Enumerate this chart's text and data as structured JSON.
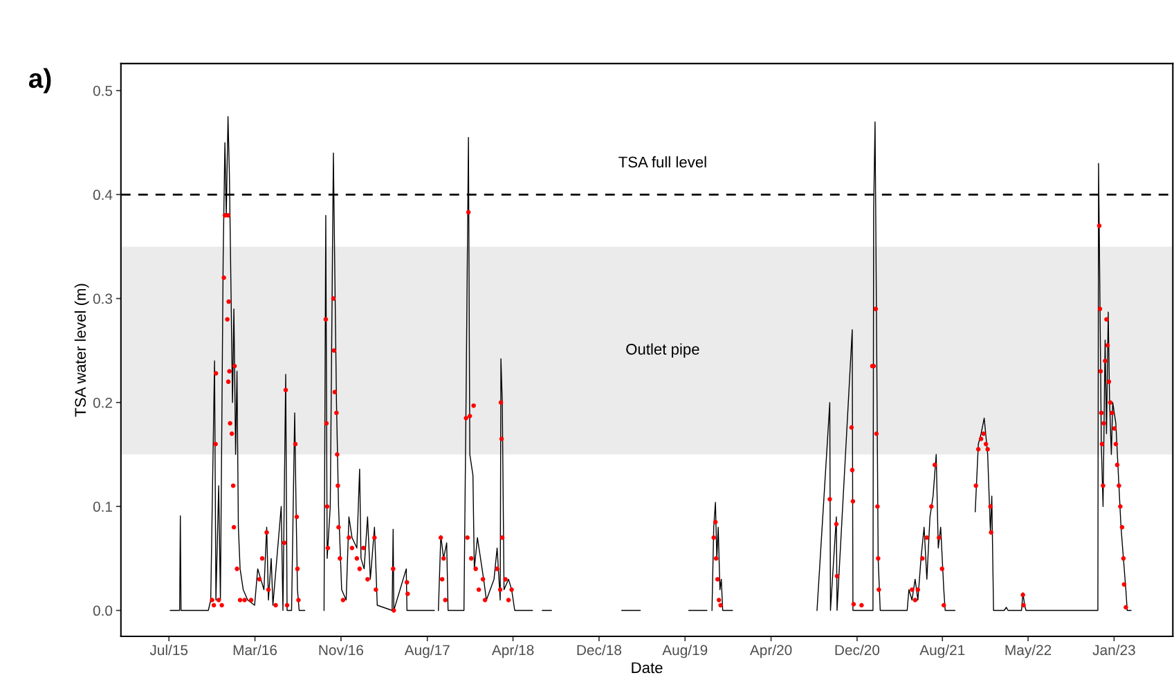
{
  "chart_data": {
    "type": "line",
    "xlabel": "Date",
    "ylabel": "TSA water level (m)",
    "annotations": [
      "a)"
    ],
    "xlim": [
      "2015-02-26",
      "2023-06-29"
    ],
    "ylim": [
      -0.025,
      0.526
    ],
    "xticks": [
      {
        "value": "2015-07-15",
        "label": "Jul/15"
      },
      {
        "value": "2016-03-20",
        "label": "Mar/16"
      },
      {
        "value": "2016-11-24",
        "label": "Nov/16"
      },
      {
        "value": "2017-08-01",
        "label": "Aug/17"
      },
      {
        "value": "2018-04-06",
        "label": "Apr/18"
      },
      {
        "value": "2018-12-11",
        "label": "Dec/18"
      },
      {
        "value": "2019-08-17",
        "label": "Aug/19"
      },
      {
        "value": "2020-04-22",
        "label": "Apr/20"
      },
      {
        "value": "2020-12-27",
        "label": "Dec/20"
      },
      {
        "value": "2021-08-31",
        "label": "Aug/21"
      },
      {
        "value": "2022-05-06",
        "label": "May/22"
      },
      {
        "value": "2023-01-10",
        "label": "Jan/23"
      }
    ],
    "yticks": [
      {
        "value": 0,
        "label": "0.0"
      },
      0.1,
      0.2,
      0.3,
      0.4,
      0.5
    ],
    "grid": false,
    "legend": false,
    "ref_lines": [
      {
        "axis": "y",
        "value": 0.4,
        "label": "TSA full level",
        "color": "#000000",
        "line_style": "dashed"
      }
    ],
    "bands": [
      {
        "axis": "y",
        "from": 0.15,
        "to": 0.35,
        "label": "Outlet pipe",
        "color": "#ebebeb"
      }
    ],
    "series": [
      {
        "color": "#000000",
        "line_style": "solid",
        "x": [
          "2015-07-19",
          "2015-08-15",
          "2015-08-17",
          "2015-08-19",
          "2015-11-06",
          "2015-11-13",
          "2015-11-24",
          "2015-11-28",
          "2015-12-06",
          "2015-12-11",
          "2015-12-19",
          "2015-12-24",
          "2015-12-28",
          "2016-01-02",
          "2016-01-06",
          "2016-01-11",
          "2016-01-15",
          "2016-01-19",
          "2016-01-24",
          "2016-01-28",
          "2016-02-01",
          "2016-02-06",
          "2016-02-15",
          "2016-02-28",
          "2016-03-19",
          "2016-03-28",
          "2016-04-15",
          "2016-04-23",
          "2016-04-28",
          "2016-05-06",
          "2016-05-11",
          "2016-06-04",
          "2016-06-09",
          "2016-06-17",
          "2016-06-21",
          "2016-07-04",
          "2016-07-13",
          "2016-07-17",
          "2016-07-21",
          "2016-07-26",
          "2016-08-11",
          "2016-09-10",
          "2016-10-06",
          "2016-10-11",
          "2016-10-15",
          "2016-10-24",
          "2016-11-02",
          "2016-11-06",
          "2016-11-11",
          "2016-11-17",
          "2016-11-26",
          "2016-12-09",
          "2016-12-17",
          "2016-12-26",
          "2017-01-09",
          "2017-01-17",
          "2017-01-21",
          "2017-01-30",
          "2017-02-09",
          "2017-02-17",
          "2017-03-01",
          "2017-03-09",
          "2017-04-21",
          "2017-04-24",
          "2017-04-26",
          "2017-06-01",
          "2017-06-03",
          "2017-08-21",
          "2017-08-27",
          "2017-09-02",
          "2017-09-09",
          "2017-09-17",
          "2017-09-26",
          "2017-09-30",
          "2017-11-15",
          "2017-11-21",
          "2017-11-28",
          "2017-12-02",
          "2017-12-11",
          "2017-12-15",
          "2017-12-24",
          "2018-01-02",
          "2018-01-11",
          "2018-01-19",
          "2018-02-10",
          "2018-02-19",
          "2018-02-28",
          "2018-03-02",
          "2018-03-06",
          "2018-03-11",
          "2018-03-24",
          "2018-04-02",
          "2018-04-11",
          "2018-06-01",
          "2018-06-15",
          "2018-06-30",
          "2018-07-26",
          "2018-11-01",
          "2019-02-15",
          "2019-04-09",
          "2019-06-01",
          "2019-08-28",
          "2019-10-19",
          "2019-10-26",
          "2019-11-03",
          "2019-11-08",
          "2019-11-13",
          "2019-11-17",
          "2019-11-21",
          "2019-11-26",
          "2019-11-30",
          "2019-12-04",
          "2020-01-01",
          "2020-05-01",
          "2020-09-02",
          "2020-10-09",
          "2020-10-11",
          "2020-10-28",
          "2020-10-30",
          "2020-12-13",
          "2020-12-15",
          "2021-01-09",
          "2021-02-11",
          "2021-02-13",
          "2021-02-17",
          "2021-02-21",
          "2021-02-26",
          "2021-03-04",
          "2021-05-21",
          "2021-05-26",
          "2021-06-04",
          "2021-06-13",
          "2021-06-21",
          "2021-06-30",
          "2021-07-09",
          "2021-07-17",
          "2021-07-26",
          "2021-08-04",
          "2021-08-13",
          "2021-08-19",
          "2021-08-26",
          "2021-09-04",
          "2021-09-08",
          "2021-10-06",
          "2021-11-01",
          "2021-12-04",
          "2021-12-13",
          "2021-12-21",
          "2021-12-30",
          "2022-01-09",
          "2022-01-17",
          "2022-01-21",
          "2022-01-26",
          "2022-02-26",
          "2022-03-04",
          "2022-03-09",
          "2022-04-17",
          "2022-04-21",
          "2022-04-26",
          "2022-04-30",
          "2022-11-24",
          "2022-11-26",
          "2022-11-30",
          "2022-12-04",
          "2022-12-09",
          "2022-12-15",
          "2022-12-19",
          "2022-12-24",
          "2022-12-28",
          "2023-01-02",
          "2023-01-06",
          "2023-01-15",
          "2023-01-24",
          "2023-01-30",
          "2023-02-06",
          "2023-02-13",
          "2023-02-17",
          "2023-02-28"
        ],
        "values": [
          0,
          0,
          0.091,
          0,
          0,
          0.01,
          0.24,
          0.01,
          0.12,
          0.01,
          0.34,
          0.45,
          0.38,
          0.475,
          0.42,
          0.3,
          0.2,
          0.29,
          0.15,
          0.23,
          0.08,
          0.04,
          0.02,
          0.01,
          0.005,
          0.04,
          0.02,
          0.08,
          0.01,
          0.05,
          0.005,
          0.1,
          0,
          0.227,
          0,
          0,
          0.19,
          0.1,
          0.02,
          0,
          0,
          null,
          0,
          0.38,
          0.05,
          0.1,
          0.44,
          0.33,
          0.2,
          0.1,
          0.02,
          0.01,
          0.09,
          0.07,
          0.06,
          0.136,
          0.05,
          0.04,
          0.09,
          0.03,
          0.08,
          0.005,
          0,
          0.078,
          0,
          0.04,
          0,
          0,
          null,
          0,
          0.072,
          0.05,
          0.065,
          0,
          0,
          0.2,
          0.455,
          0.15,
          0.13,
          0.04,
          0.07,
          0.05,
          0.03,
          0.01,
          0.03,
          0.06,
          0.01,
          0.242,
          0.2,
          0.02,
          0.03,
          0.02,
          0,
          0,
          null,
          0,
          0,
          null,
          0,
          0,
          null,
          0,
          0,
          null,
          0,
          0.08,
          0.104,
          0.05,
          0.08,
          0.02,
          0.03,
          0,
          0,
          null,
          0,
          0.2,
          0,
          0.09,
          0,
          0.27,
          0,
          0,
          0,
          0.385,
          0.47,
          0.29,
          0.05,
          0,
          0,
          0.02,
          0.01,
          0.03,
          0.01,
          0.05,
          0.08,
          0.03,
          0.09,
          0.11,
          0.15,
          0.06,
          0.08,
          0.02,
          0,
          0,
          null,
          0.095,
          0.16,
          0.17,
          0.185,
          0.15,
          0.075,
          0.11,
          0,
          0,
          0.003,
          0,
          0,
          0.017,
          0.005,
          0,
          0,
          0.43,
          0.3,
          0.16,
          0.1,
          0.26,
          0.17,
          0.287,
          0.2,
          0.15,
          0.2,
          0.18,
          0.12,
          0.08,
          0.05,
          0.02,
          0,
          0
        ]
      },
      {
        "type": "scatter",
        "color": "#ff0000",
        "marker": "circle",
        "x": [
          "2015-11-17",
          "2015-11-22",
          "2015-11-28",
          "2015-11-27",
          "2015-12-06",
          "2015-12-15",
          "2015-12-21",
          "2015-12-24",
          "2016-01-02",
          "2015-12-31",
          "2016-01-04",
          "2016-01-03",
          "2016-01-06",
          "2016-01-08",
          "2016-01-13",
          "2016-01-17",
          "2016-01-19",
          "2016-01-21",
          "2016-01-28",
          "2016-02-06",
          "2016-02-19",
          "2016-03-09",
          "2016-04-02",
          "2016-04-10",
          "2016-04-23",
          "2016-04-28",
          "2016-05-19",
          "2016-06-13",
          "2016-06-17",
          "2016-06-21",
          "2016-07-15",
          "2016-07-19",
          "2016-07-21",
          "2016-07-24",
          "2016-10-11",
          "2016-10-13",
          "2016-10-15",
          "2016-10-17",
          "2016-11-02",
          "2016-11-04",
          "2016-11-06",
          "2016-11-11",
          "2016-11-13",
          "2016-11-15",
          "2016-11-17",
          "2016-11-21",
          "2016-11-30",
          "2016-12-17",
          "2016-12-26",
          "2017-01-09",
          "2017-01-17",
          "2017-01-28",
          "2017-02-09",
          "2017-03-01",
          "2017-03-05",
          "2017-04-24",
          "2017-04-26",
          "2017-06-03",
          "2017-06-05",
          "2017-09-09",
          "2017-09-13",
          "2017-09-17",
          "2017-09-22",
          "2017-11-21",
          "2017-11-25",
          "2017-11-28",
          "2017-12-02",
          "2017-12-06",
          "2017-12-13",
          "2017-12-19",
          "2017-12-28",
          "2018-01-09",
          "2018-01-15",
          "2018-02-19",
          "2018-02-28",
          "2018-03-02",
          "2018-03-04",
          "2018-03-06",
          "2018-03-15",
          "2018-03-24",
          "2018-04-02",
          "2019-11-08",
          "2019-11-13",
          "2019-11-15",
          "2019-11-19",
          "2019-11-23",
          "2019-11-28",
          "2020-10-09",
          "2020-10-28",
          "2020-10-30",
          "2020-12-11",
          "2020-12-13",
          "2020-12-15",
          "2020-12-17",
          "2021-01-09",
          "2021-02-09",
          "2021-02-13",
          "2021-02-19",
          "2021-02-21",
          "2021-02-24",
          "2021-02-26",
          "2021-02-28",
          "2021-06-04",
          "2021-06-13",
          "2021-06-21",
          "2021-07-04",
          "2021-07-17",
          "2021-07-30",
          "2021-08-09",
          "2021-08-21",
          "2021-08-30",
          "2021-09-04",
          "2021-12-06",
          "2021-12-13",
          "2021-12-21",
          "2021-12-28",
          "2022-01-04",
          "2022-01-09",
          "2022-01-17",
          "2022-01-19",
          "2022-04-21",
          "2022-04-23",
          "2022-11-28",
          "2022-11-30",
          "2022-12-02",
          "2022-12-04",
          "2022-12-06",
          "2022-12-09",
          "2022-12-11",
          "2022-12-15",
          "2022-12-19",
          "2022-12-22",
          "2022-12-26",
          "2022-12-30",
          "2023-01-04",
          "2023-01-11",
          "2023-01-15",
          "2023-01-19",
          "2023-01-24",
          "2023-01-28",
          "2023-02-02",
          "2023-02-06",
          "2023-02-08",
          "2023-02-13"
        ],
        "values": [
          0.01,
          0.005,
          0.228,
          0.16,
          0.01,
          0.005,
          0.32,
          0.38,
          0.38,
          0.28,
          0.297,
          0.22,
          0.23,
          0.18,
          0.17,
          0.12,
          0.08,
          0.235,
          0.04,
          0.01,
          0.01,
          0.01,
          0.03,
          0.05,
          0.075,
          0.02,
          0.005,
          0.065,
          0.212,
          0.005,
          0.16,
          0.09,
          0.04,
          0.01,
          0.28,
          0.18,
          0.1,
          0.06,
          0.3,
          0.25,
          0.21,
          0.19,
          0.15,
          0.12,
          0.08,
          0.05,
          0.01,
          0.07,
          0.06,
          0.05,
          0.04,
          0.06,
          0.03,
          0.07,
          0.02,
          0.04,
          0,
          0.027,
          0.016,
          0.07,
          0.03,
          0.05,
          0.01,
          0.185,
          0.07,
          0.383,
          0.187,
          0.05,
          0.197,
          0.04,
          0.02,
          0.03,
          0.01,
          0.04,
          0.02,
          0.2,
          0.165,
          0.07,
          0.03,
          0.01,
          0.02,
          0.07,
          0.085,
          0.05,
          0.03,
          0.01,
          0.005,
          0.107,
          0.083,
          0.033,
          0.176,
          0.135,
          0.105,
          0.006,
          0.005,
          0.235,
          0.235,
          0.29,
          0.17,
          0.1,
          0.05,
          0.02,
          0.02,
          0.01,
          0.02,
          0.05,
          0.07,
          0.1,
          0.14,
          0.07,
          0.04,
          0.005,
          0.12,
          0.155,
          0.165,
          0.17,
          0.16,
          0.155,
          0.1,
          0.075,
          0.015,
          0.005,
          0.37,
          0.29,
          0.23,
          0.19,
          0.16,
          0.12,
          0.18,
          0.24,
          0.28,
          0.255,
          0.22,
          0.2,
          0.19,
          0.175,
          0.16,
          0.14,
          0.12,
          0.1,
          0.08,
          0.05,
          0.025,
          0.003
        ]
      }
    ]
  }
}
